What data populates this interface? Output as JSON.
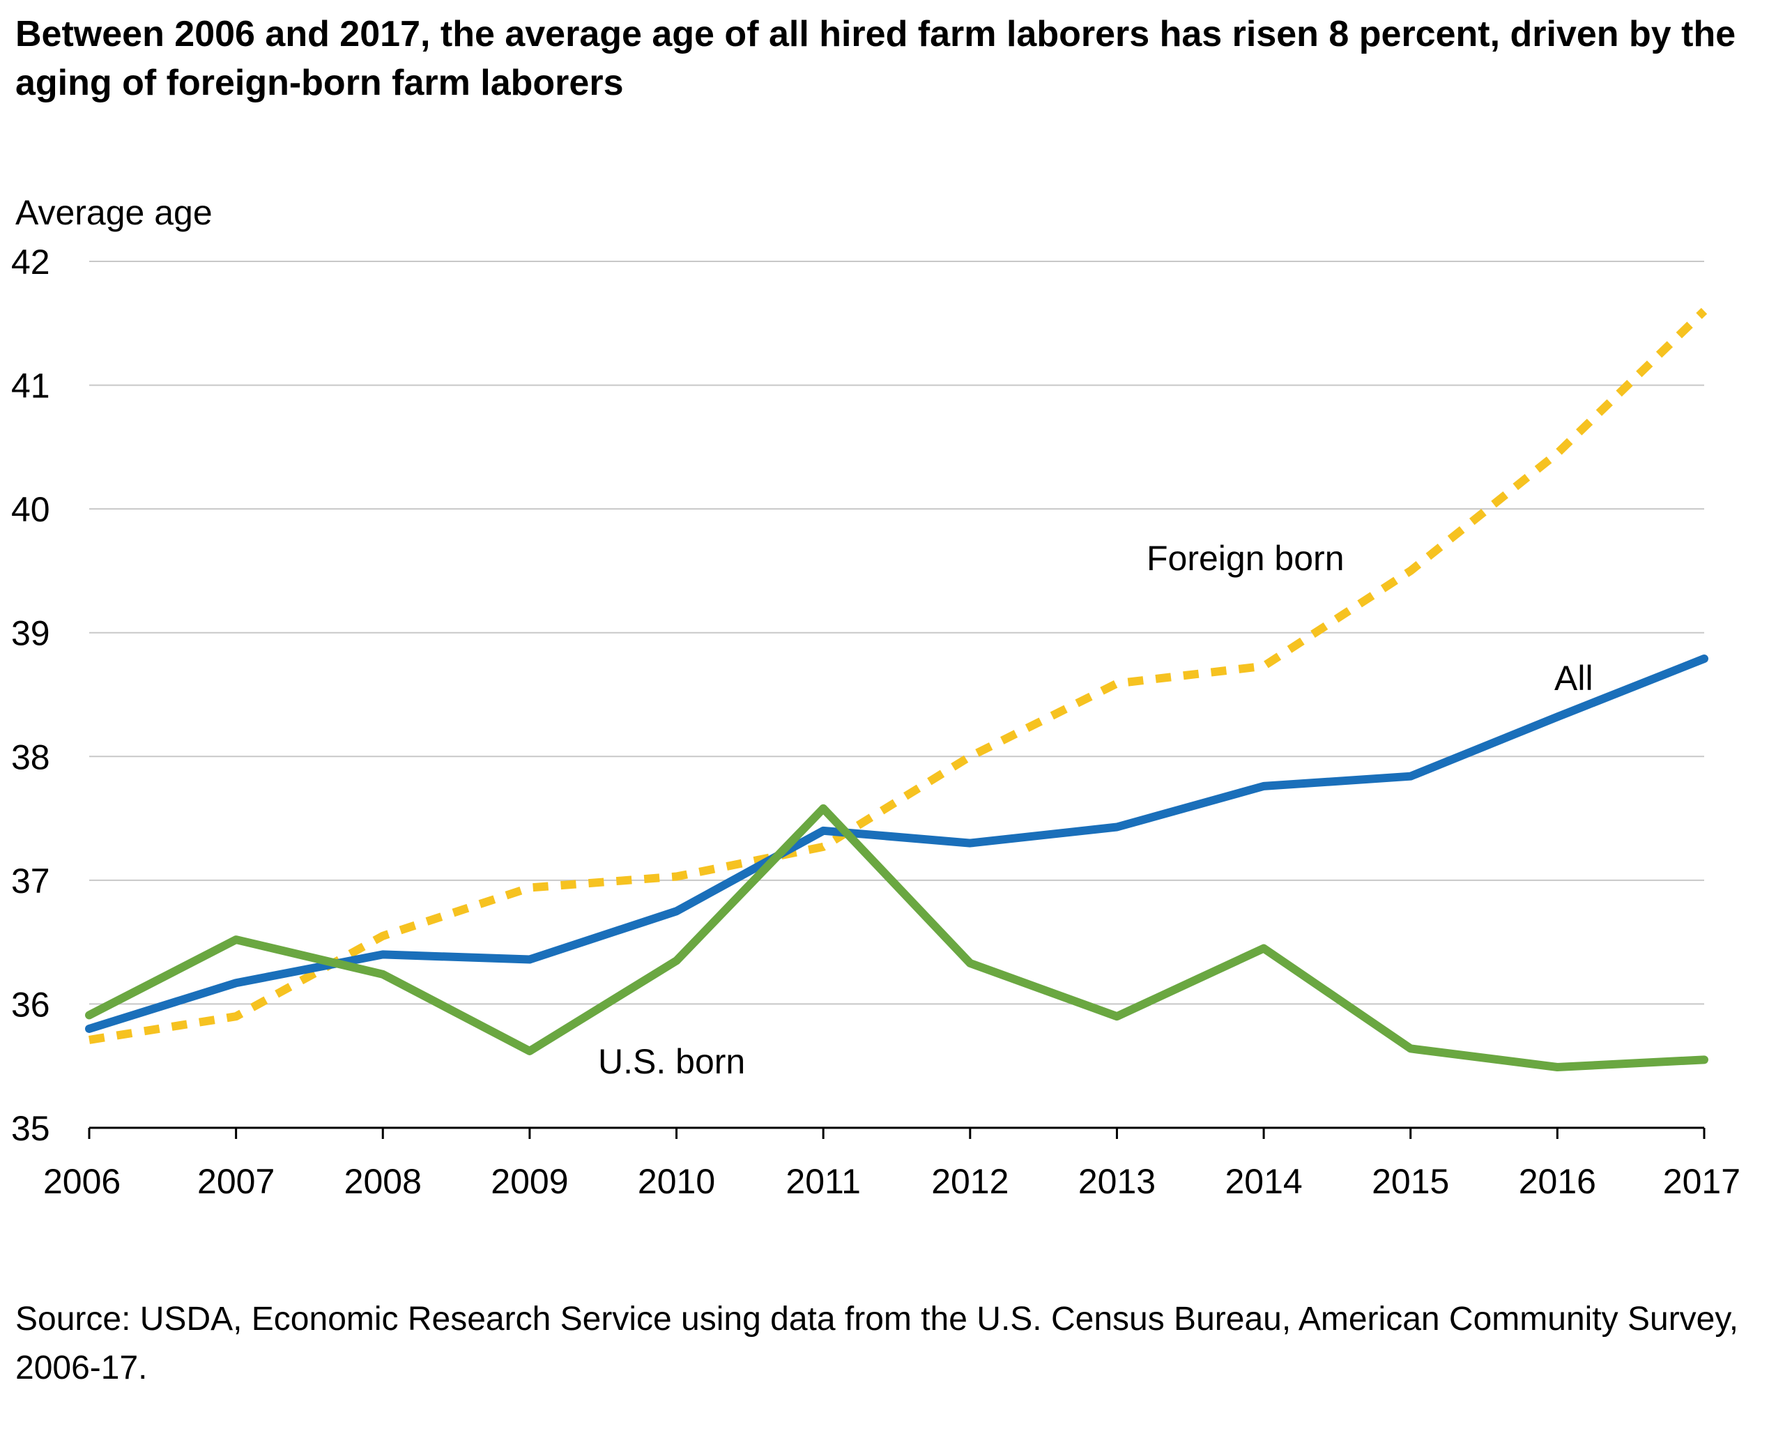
{
  "title": "Between 2006 and 2017, the average age of all hired farm laborers has risen 8 percent, driven by the aging of foreign-born farm laborers",
  "source": "Source: USDA, Economic Research Service using data from the U.S. Census Bureau, American Community Survey, 2006-17.",
  "chart_data": {
    "type": "line",
    "title": "Between 2006 and 2017, the average age of all hired farm laborers has risen 8 percent, driven by the aging of foreign-born farm laborers",
    "ylabel": "Average age",
    "xlabel": "",
    "x": [
      2006,
      2007,
      2008,
      2009,
      2010,
      2011,
      2012,
      2013,
      2014,
      2015,
      2016,
      2017
    ],
    "ylim": [
      35,
      42
    ],
    "yticks": [
      35,
      36,
      37,
      38,
      39,
      40,
      41,
      42
    ],
    "grid": true,
    "legend": "none (direct line labels)",
    "series": [
      {
        "name": "All",
        "color": "#1a6fba",
        "style": "solid",
        "values": [
          35.8,
          36.17,
          36.4,
          36.36,
          36.75,
          37.4,
          37.3,
          37.43,
          37.76,
          37.84,
          38.32,
          38.79
        ]
      },
      {
        "name": "Foreign born",
        "color": "#f6c220",
        "style": "dotted",
        "values": [
          35.71,
          35.9,
          36.55,
          36.94,
          37.03,
          37.27,
          38.0,
          38.59,
          38.73,
          39.5,
          40.45,
          41.6
        ]
      },
      {
        "name": "U.S. born",
        "color": "#6aa741",
        "style": "solid",
        "values": [
          35.91,
          36.52,
          36.24,
          35.62,
          36.35,
          37.58,
          36.33,
          35.9,
          36.45,
          35.64,
          35.49,
          35.55
        ]
      }
    ]
  }
}
